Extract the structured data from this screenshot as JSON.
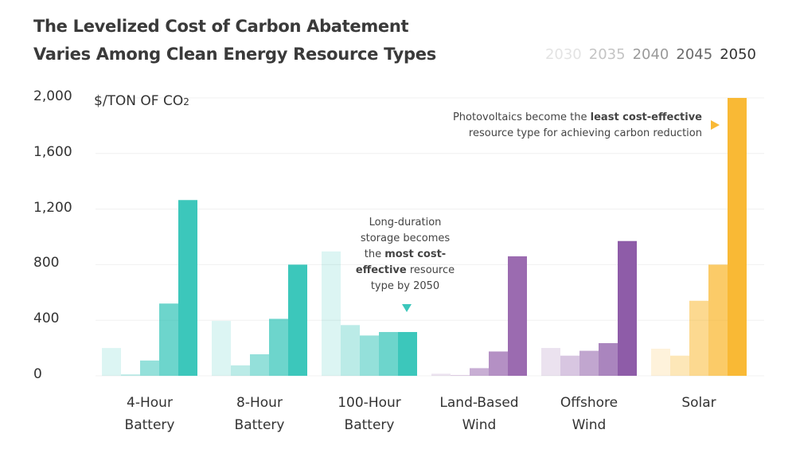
{
  "chart_data": {
    "type": "bar",
    "title": "The Levelized Cost of Carbon Abatement Varies Among Clean Energy Resource Types",
    "title_lines": [
      "The Levelized Cost of Carbon Abatement",
      "Varies Among Clean Energy Resource Types"
    ],
    "ylabel": "$/TON OF CO",
    "ylabel_sub": "2",
    "ylim": [
      0,
      2000
    ],
    "yticks": [
      "0",
      "400",
      "800",
      "1,200",
      "1,600",
      "2,000"
    ],
    "ytick_values": [
      0,
      400,
      800,
      1200,
      1600,
      2000
    ],
    "grid": true,
    "legend_placement": "top-right",
    "series_names": [
      "2030",
      "2035",
      "2040",
      "2045",
      "2050"
    ],
    "legend_colors": [
      "#e3e3e3",
      "#c4c4c4",
      "#9a9a9a",
      "#6a6a6a",
      "#333333"
    ],
    "categories": [
      {
        "line1": "4-Hour",
        "line2": "Battery",
        "color": "#3cc7bb",
        "values": [
          200,
          10,
          110,
          520,
          1265
        ]
      },
      {
        "line1": "8-Hour",
        "line2": "Battery",
        "color": "#3cc7bb",
        "values": [
          395,
          75,
          155,
          410,
          800
        ]
      },
      {
        "line1": "100-Hour",
        "line2": "Battery",
        "color": "#3cc7bb",
        "values": [
          895,
          365,
          290,
          315,
          315
        ]
      },
      {
        "line1": "Land-Based",
        "line2": "Wind",
        "color": "#9b6bb0",
        "values": [
          15,
          5,
          55,
          175,
          860
        ]
      },
      {
        "line1": "Offshore",
        "line2": "Wind",
        "color": "#8e5ca8",
        "values": [
          200,
          145,
          180,
          235,
          970
        ]
      },
      {
        "line1": "Solar",
        "line2": "",
        "color": "#f9b935",
        "values": [
          195,
          145,
          540,
          800,
          2000
        ]
      }
    ],
    "annotations": {
      "storage": {
        "lines": [
          "Long-duration",
          "storage becomes"
        ],
        "pre": "the ",
        "bold1": "most cost-",
        "bold2": "effective",
        "post": " resource",
        "last": "type by 2050",
        "marker_color": "#3cc7bb"
      },
      "solar": {
        "pre": "Photovoltaics become the ",
        "bold": "least cost-effective",
        "line2": "resource type for achieving carbon reduction",
        "marker_color": "#f9b935"
      }
    }
  }
}
